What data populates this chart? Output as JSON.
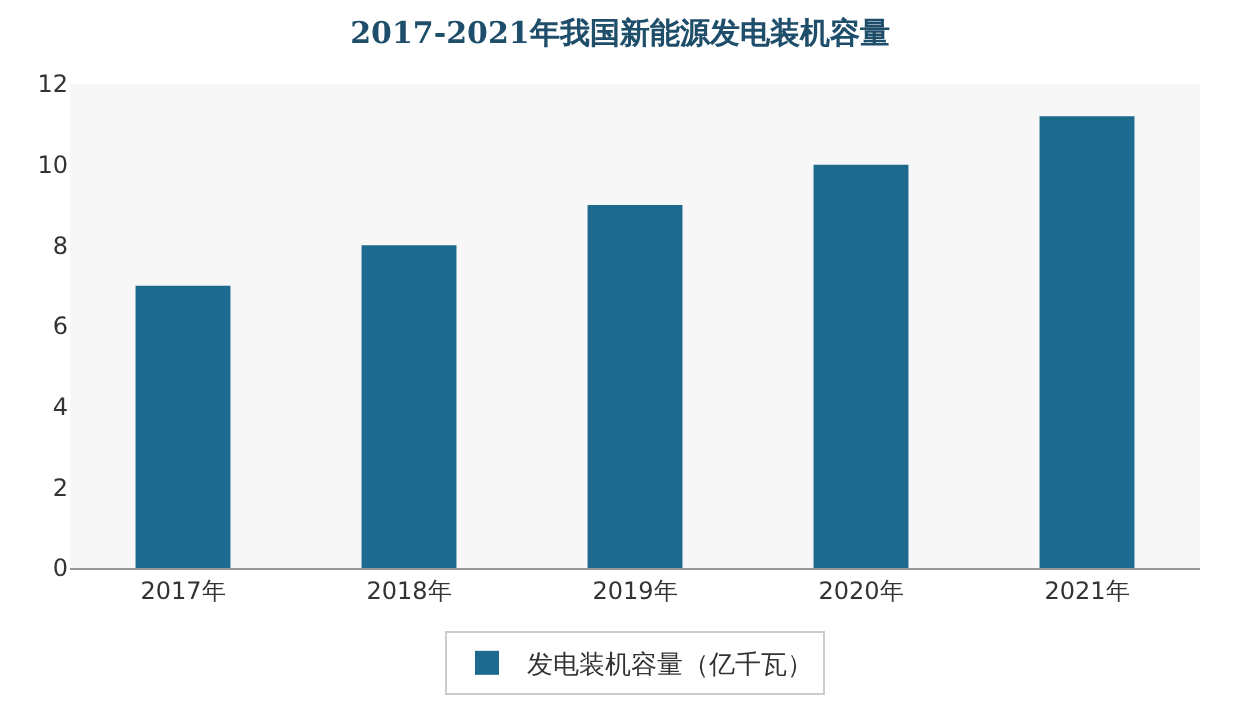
{
  "chart_data": {
    "type": "bar",
    "title": "2017-2021年我国新能源发电装机容量",
    "categories": [
      "2017年",
      "2018年",
      "2019年",
      "2020年",
      "2021年"
    ],
    "series": [
      {
        "name": "发电装机容量（亿千瓦）",
        "color": "#1d6a8e",
        "values": [
          7.0,
          8.0,
          9.0,
          10.0,
          11.2
        ]
      }
    ],
    "ylim": [
      0,
      12
    ],
    "yticks": [
      0,
      2,
      4,
      6,
      8,
      10,
      12
    ],
    "grid": false,
    "legend": "bottom"
  }
}
